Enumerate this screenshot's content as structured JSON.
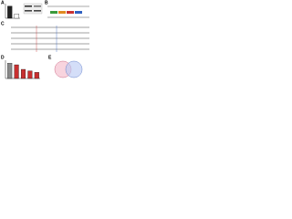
{
  "panels": {
    "a": {
      "label": "A",
      "values": [
        1,
        0.35
      ],
      "ylim": [
        0,
        1.2
      ]
    },
    "b": {
      "label": "B"
    },
    "c": {
      "label": "C"
    },
    "d": {
      "label": "D",
      "values": [
        1,
        0.9,
        0.6,
        0.5,
        0.4
      ],
      "ylim": [
        0,
        1.2
      ]
    },
    "e": {
      "label": "E"
    }
  }
}
